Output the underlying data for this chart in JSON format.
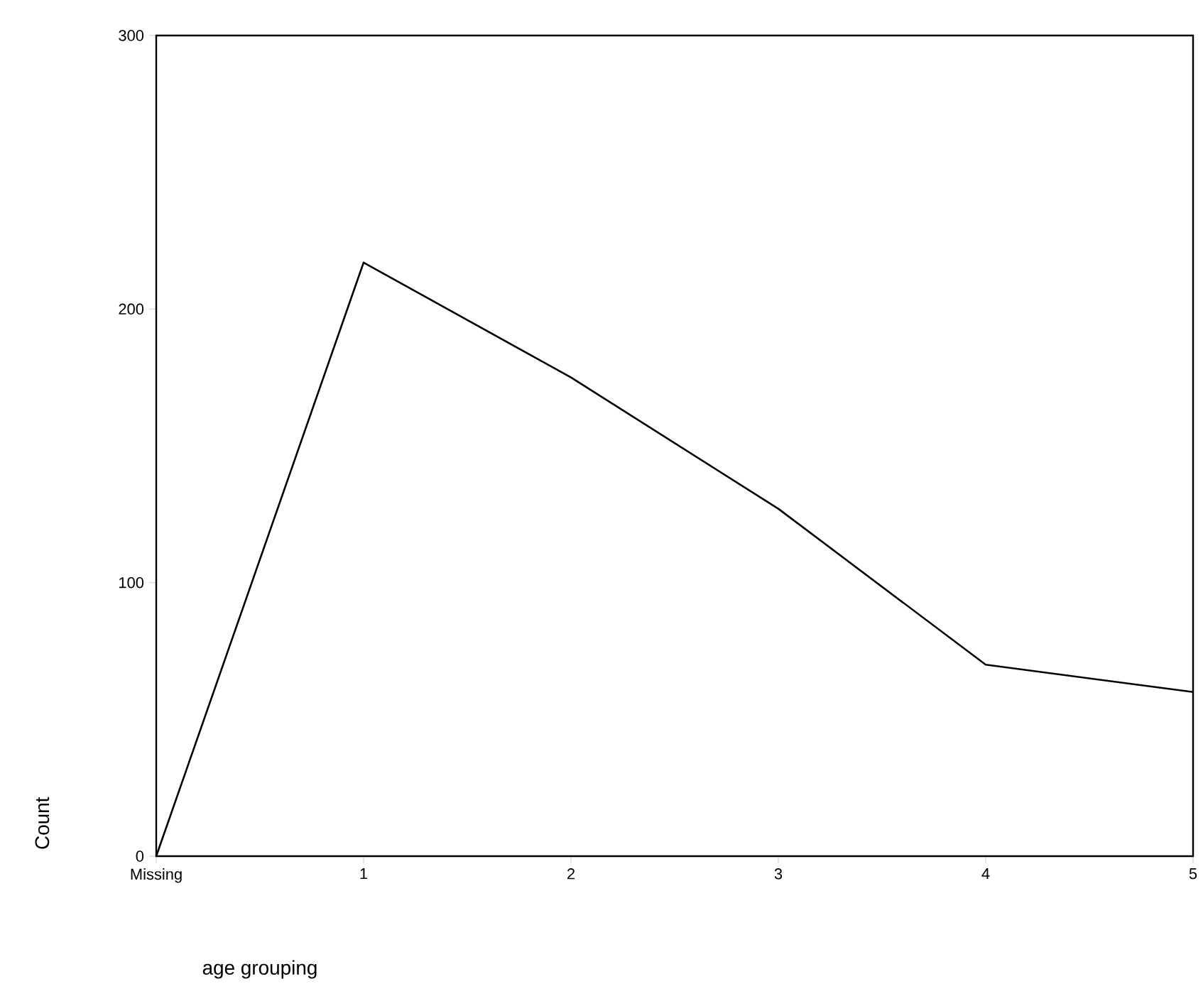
{
  "chart_data": {
    "type": "line",
    "xlabel": "age grouping",
    "ylabel": "Count",
    "categories": [
      "Missing",
      "1",
      "2",
      "3",
      "4",
      "5"
    ],
    "values": [
      0,
      217,
      175,
      127,
      70,
      60
    ],
    "color": "#000000",
    "ylim": [
      0,
      300
    ],
    "yticks": [
      0,
      100,
      200,
      300
    ],
    "marker": "none",
    "line_style": "solid"
  }
}
